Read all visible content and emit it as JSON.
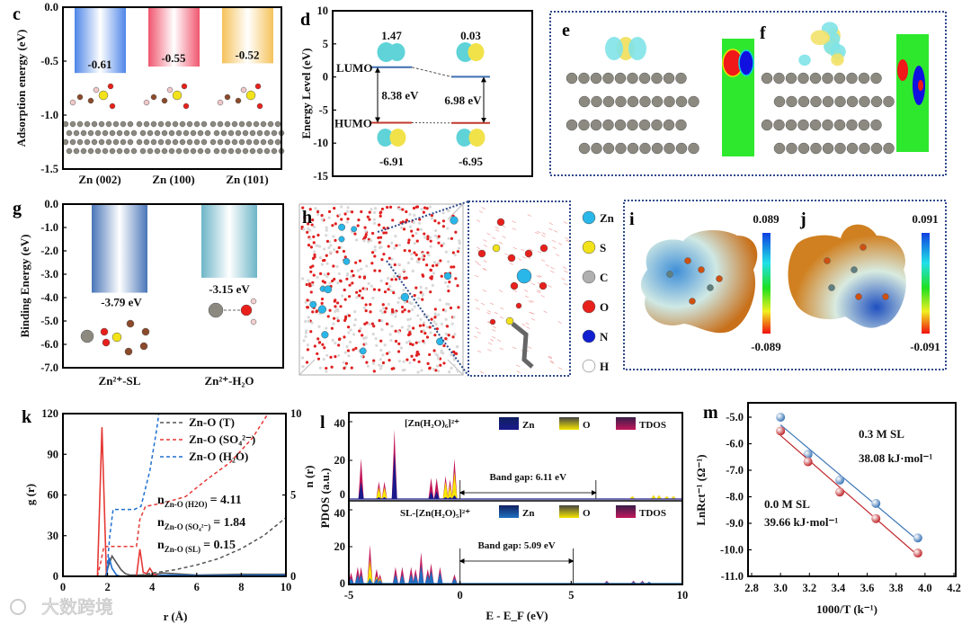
{
  "watermark": "大数跨境",
  "panel_labels": {
    "c": "c",
    "d": "d",
    "e": "e",
    "f": "f",
    "g": "g",
    "h": "h",
    "i": "i",
    "j": "j",
    "k": "k",
    "l": "l",
    "m": "m"
  },
  "chart_data": [
    {
      "id": "c",
      "type": "bar",
      "ylabel": "Adsorption energy (eV)",
      "categories": [
        "Zn (002)",
        "Zn (100)",
        "Zn (101)"
      ],
      "values": [
        -0.61,
        -0.55,
        -0.52
      ],
      "value_labels": [
        "-0.61",
        "-0.55",
        "-0.52"
      ],
      "colors": [
        "#4f86e8",
        "#f0566e",
        "#f5c25a"
      ],
      "ylim": [
        -1.5,
        0
      ],
      "yticks": [
        0,
        -0.5,
        -1.0,
        -1.5
      ],
      "ytick_labels": [
        "0.0",
        "-0.5",
        "-1.0",
        "-1.5"
      ]
    },
    {
      "id": "d",
      "type": "line",
      "ylabel": "Energy Level (eV)",
      "ylim": [
        -15,
        10
      ],
      "yticks": [
        10,
        5,
        0,
        -5,
        -10,
        -15
      ],
      "ytick_labels": [
        "10",
        "5",
        "0",
        "-5",
        "-10",
        "-15"
      ],
      "lumo_label": "LUMO",
      "homo_label": "HUMO",
      "lumo_color": "#3d6fb0",
      "homo_color": "#c0392b",
      "levels": [
        {
          "lumo": 1.47,
          "homo": -6.91,
          "lumo_label": "1.47",
          "homo_label": "-6.91",
          "gap": "8.38 eV"
        },
        {
          "lumo": 0.03,
          "homo": -6.95,
          "lumo_label": "0.03",
          "homo_label": "-6.95",
          "gap": "6.98 eV"
        }
      ]
    },
    {
      "id": "g",
      "type": "bar",
      "ylabel": "Binding Energy (eV)",
      "categories": [
        "Zn²⁺-SL",
        "Zn²⁺-H₂O"
      ],
      "values": [
        -3.79,
        -3.15
      ],
      "value_labels": [
        "-3.79 eV",
        "-3.15 eV"
      ],
      "colors": [
        "#4a76b8",
        "#6db5c8"
      ],
      "ylim": [
        -7,
        0
      ],
      "yticks": [
        0,
        -1,
        -2,
        -3,
        -4,
        -5,
        -6,
        -7
      ],
      "ytick_labels": [
        "0.0",
        "-1.0",
        "-2.0",
        "-3.0",
        "-4.0",
        "-5.0",
        "-6.0",
        "-7.0"
      ]
    },
    {
      "id": "k",
      "type": "line",
      "xlabel": "r (Å)",
      "ylabel": "g (r)",
      "y2label": "n (r)",
      "xlim": [
        0,
        10
      ],
      "ylim": [
        0,
        120
      ],
      "y2lim": [
        0,
        10
      ],
      "xticks": [
        0,
        2,
        4,
        6,
        8,
        10
      ],
      "xtick_labels": [
        "0",
        "2",
        "4",
        "6",
        "8",
        "10"
      ],
      "yticks": [
        0,
        30,
        60,
        90,
        120
      ],
      "ytick_labels": [
        "0",
        "30",
        "60",
        "90",
        "120"
      ],
      "y2ticks": [
        0,
        5,
        10
      ],
      "y2tick_labels": [
        "0",
        "5",
        "10"
      ],
      "legend": [
        "Zn-O (T)",
        "Zn-O (SO₄²⁻)",
        "Zn-O (H₂O)"
      ],
      "series": [
        {
          "name": "Zn-O (T)",
          "color": "#555555",
          "axis": "left",
          "points": [
            [
              1.9,
              0
            ],
            [
              2.05,
              8
            ],
            [
              2.2,
              15
            ],
            [
              2.4,
              10
            ],
            [
              2.6,
              5
            ],
            [
              2.8,
              2
            ],
            [
              3.0,
              1
            ],
            [
              3.5,
              1
            ],
            [
              4.0,
              1
            ],
            [
              4.5,
              2.5
            ],
            [
              5,
              2
            ],
            [
              6,
              1
            ],
            [
              8,
              1.5
            ],
            [
              10,
              1.5
            ]
          ]
        },
        {
          "name": "Zn-O (SO₄²⁻)",
          "color": "#e53935",
          "axis": "left",
          "points": [
            [
              0,
              0
            ],
            [
              1.55,
              0
            ],
            [
              1.75,
              110
            ],
            [
              1.95,
              0
            ],
            [
              3.3,
              0
            ],
            [
              3.45,
              20
            ],
            [
              3.6,
              3
            ],
            [
              3.75,
              2
            ],
            [
              3.9,
              6
            ],
            [
              4.05,
              2
            ],
            [
              4.3,
              0
            ],
            [
              10,
              0
            ]
          ]
        },
        {
          "name": "Zn-O (H₂O)",
          "color": "#1e6fd0",
          "axis": "left",
          "points": [
            [
              0,
              0
            ],
            [
              1.95,
              0
            ],
            [
              2.07,
              14
            ],
            [
              2.2,
              6
            ],
            [
              2.4,
              1
            ],
            [
              2.6,
              0
            ],
            [
              4,
              0
            ],
            [
              4.5,
              1
            ],
            [
              5,
              1
            ],
            [
              6,
              0.5
            ],
            [
              10,
              1
            ]
          ]
        },
        {
          "name": "n Zn-O (T)",
          "color": "#555555",
          "axis": "right",
          "dashed": true,
          "points": [
            [
              3.2,
              0
            ],
            [
              4,
              0.2
            ],
            [
              5,
              0.4
            ],
            [
              6,
              0.7
            ],
            [
              7,
              1.1
            ],
            [
              8,
              1.7
            ],
            [
              9,
              2.5
            ],
            [
              10,
              3.6
            ]
          ]
        },
        {
          "name": "n Zn-O (SO₄²⁻)",
          "color": "#e53935",
          "axis": "right",
          "dashed": true,
          "points": [
            [
              1.55,
              0
            ],
            [
              1.7,
              0.9
            ],
            [
              1.84,
              1.84
            ],
            [
              2.2,
              1.84
            ],
            [
              3.3,
              1.84
            ],
            [
              3.45,
              3.5
            ],
            [
              3.7,
              4.3
            ],
            [
              4.5,
              4.5
            ],
            [
              5.5,
              4.9
            ],
            [
              6.5,
              6.0
            ],
            [
              7.5,
              7.0
            ],
            [
              8.5,
              8.5
            ],
            [
              9.2,
              10
            ]
          ]
        },
        {
          "name": "n Zn-O (H₂O)",
          "color": "#1e6fd0",
          "axis": "right",
          "dashed": true,
          "points": [
            [
              1.95,
              0
            ],
            [
              2.1,
              2.5
            ],
            [
              2.25,
              4.11
            ],
            [
              3.2,
              4.11
            ],
            [
              3.5,
              4.3
            ],
            [
              3.9,
              6.5
            ],
            [
              4.2,
              9
            ],
            [
              4.35,
              10.5
            ]
          ]
        }
      ],
      "annotations": [
        {
          "prefix": "n",
          "sub": "Zn-O (H2O)",
          "value": "= 4.11"
        },
        {
          "prefix": "n",
          "sub": "Zn-O (SO₄²⁻)",
          "value": "= 1.84"
        },
        {
          "prefix": "n",
          "sub": "Zn-O (SL)",
          "value": "= 0.15"
        }
      ]
    },
    {
      "id": "l",
      "type": "area",
      "xlabel": "E - E_F (eV)",
      "ylabel": "PDOS (a.u.)",
      "xlim": [
        -5,
        10
      ],
      "ylim": [
        0,
        45
      ],
      "xticks": [
        -5,
        0,
        5,
        10
      ],
      "xtick_labels": [
        "-5",
        "0",
        "5",
        "10"
      ],
      "yticks": [
        0,
        20,
        40
      ],
      "ytick_labels": [
        "0",
        "20",
        "40"
      ],
      "legend": [
        "Zn",
        "O",
        "TDOS"
      ],
      "colors": {
        "tdos": "#c2185b",
        "o": "#f5e600"
      },
      "subplots": [
        {
          "title": "[Zn(H₂O)₆]²⁺",
          "zn_color": "#1a1a8c",
          "band_gap": 6.11,
          "band_gap_label": "Band gap: 6.11 eV",
          "peaks_E_TDOS_O_Zn": [
            [
              -4.45,
              21,
              0,
              9
            ],
            [
              -3.65,
              9,
              6,
              1
            ],
            [
              -3.4,
              9,
              6,
              1
            ],
            [
              -2.95,
              36,
              0,
              24
            ],
            [
              -1.3,
              11,
              0,
              4
            ],
            [
              -1.05,
              11,
              0,
              4
            ],
            [
              -0.65,
              12,
              9,
              1
            ],
            [
              -0.45,
              10,
              7,
              1
            ],
            [
              -0.25,
              21,
              14,
              2
            ],
            [
              7.75,
              1.5,
              1.5,
              0
            ],
            [
              8.7,
              2,
              2,
              0
            ],
            [
              8.95,
              2,
              2,
              0
            ],
            [
              9.3,
              1.5,
              1.5,
              0
            ],
            [
              9.6,
              1.5,
              1.5,
              0
            ]
          ]
        },
        {
          "title": "SL-[Zn(H₂O)₅]²⁺",
          "zn_color": "#1e6fc0",
          "band_gap": 5.09,
          "band_gap_label": "Band gap: 5.09 eV",
          "peaks_E_TDOS_O_Zn": [
            [
              -4.9,
              6,
              2,
              3
            ],
            [
              -4.6,
              9,
              1,
              5
            ],
            [
              -4.45,
              9,
              1,
              5
            ],
            [
              -4.05,
              21,
              13,
              3
            ],
            [
              -3.75,
              8,
              4,
              3
            ],
            [
              -3.6,
              5,
              3,
              2
            ],
            [
              -2.9,
              9,
              1,
              5
            ],
            [
              -2.6,
              9,
              1,
              5
            ],
            [
              -2.2,
              9,
              1,
              5
            ],
            [
              -2.0,
              8,
              1,
              5
            ],
            [
              -1.75,
              17,
              2,
              10
            ],
            [
              -1.45,
              8,
              1,
              5
            ],
            [
              -1.3,
              11,
              2,
              7
            ],
            [
              -0.9,
              9,
              1,
              6
            ],
            [
              -0.25,
              5,
              0,
              3
            ],
            [
              6.6,
              1.5,
              0,
              1
            ],
            [
              7.8,
              1.5,
              0,
              1
            ],
            [
              8.2,
              1.5,
              0,
              1
            ],
            [
              8.5,
              1,
              0,
              1
            ]
          ]
        }
      ]
    },
    {
      "id": "m",
      "type": "scatter",
      "xlabel": "1000/T (k⁻¹)",
      "ylabel": "LnRct⁻¹ (Ω⁻¹)",
      "xlim": [
        2.8,
        4.2
      ],
      "ylim": [
        -11.0,
        -4.45
      ],
      "xticks": [
        2.8,
        3.0,
        3.2,
        3.4,
        3.6,
        3.8,
        4.0,
        4.2
      ],
      "xtick_labels": [
        "2.8",
        "3.0",
        "3.2",
        "3.4",
        "3.6",
        "3.8",
        "4.0",
        "4.2"
      ],
      "yticks": [
        -5,
        -6,
        -7,
        -8,
        -9,
        -10,
        -11
      ],
      "ytick_labels": [
        "-5.0",
        "-6.0",
        "-7.0",
        "-8.0",
        "-9.0",
        "-10.0",
        "-11.0"
      ],
      "series": [
        {
          "name": "0.3 M SL",
          "label": "0.3 M SL",
          "ea": "38.08 kJ·mol⁻¹",
          "color": "#3f78b8",
          "x": [
            3.0,
            3.19,
            3.41,
            3.66,
            3.95
          ],
          "y": [
            -5.0,
            -6.4,
            -7.37,
            -8.25,
            -9.55
          ]
        },
        {
          "name": "0.0 M SL",
          "label": "0.0 M SL",
          "ea": "39.66 kJ·mol⁻¹",
          "color": "#c0282d",
          "x": [
            3.0,
            3.19,
            3.41,
            3.66,
            3.95
          ],
          "y": [
            -5.52,
            -6.68,
            -7.82,
            -8.82,
            -10.12
          ]
        }
      ]
    }
  ],
  "panel_h": {
    "legend": [
      {
        "label": "Zn",
        "color": "#29b6e8"
      },
      {
        "label": "S",
        "color": "#f2e21a"
      },
      {
        "label": "C",
        "color": "#b0b0b0"
      },
      {
        "label": "O",
        "color": "#e8201c"
      },
      {
        "label": "N",
        "color": "#1020d0"
      },
      {
        "label": "H",
        "color": "#ffffff"
      }
    ]
  },
  "panel_ij": {
    "i": {
      "max": "0.089",
      "min": "-0.089"
    },
    "j": {
      "max": "0.091",
      "min": "-0.091"
    }
  }
}
